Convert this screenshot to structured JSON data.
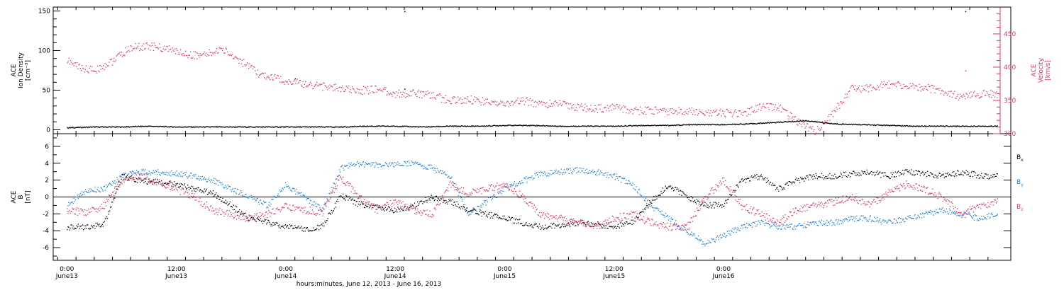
{
  "colors": {
    "black": "#000000",
    "blue": "#1a80e0",
    "pink": "#e8305a",
    "axis": "#000000"
  },
  "chart_data": [
    {
      "type": "scatter",
      "panel": "top",
      "ylabel_left": [
        "ACE",
        "Ion Density",
        "[cm⁻³]"
      ],
      "ylabel_right": [
        "ACE",
        "Velocity",
        "[km/s]"
      ],
      "ylim_left": [
        -5,
        155
      ],
      "ylim_right": [
        300,
        485
      ],
      "yticks_left": [
        "0",
        "50",
        "100",
        "150"
      ],
      "yticks_right": [
        "300",
        "350",
        "400",
        "450"
      ],
      "series": [
        {
          "axis": "left",
          "color": "black",
          "t": [
            0,
            3,
            6,
            9,
            12,
            15,
            18,
            21,
            24,
            27,
            30,
            33,
            36,
            39,
            42,
            45,
            48,
            51,
            54,
            57,
            60,
            63,
            66,
            69,
            72,
            75,
            78,
            81,
            84,
            87,
            90,
            93,
            96,
            99,
            102
          ],
          "values": [
            3,
            4,
            4,
            5,
            4,
            4,
            4,
            4,
            4,
            4,
            4,
            5,
            5,
            4,
            5,
            5,
            6,
            6,
            5,
            5,
            5,
            6,
            6,
            7,
            7,
            8,
            10,
            12,
            8,
            7,
            6,
            5,
            5,
            5,
            5
          ]
        },
        {
          "axis": "right",
          "color": "pink",
          "t": [
            0,
            1.5,
            3,
            5,
            7,
            9,
            11,
            13,
            15,
            17,
            19,
            21,
            24,
            26,
            28,
            30,
            32,
            34,
            36,
            38,
            40,
            42,
            44,
            46,
            48,
            50,
            52,
            54,
            56,
            58,
            60,
            62,
            64,
            66,
            68,
            70,
            72,
            74,
            76,
            78,
            80,
            82,
            84,
            86,
            88,
            90,
            92,
            94,
            96,
            98,
            100,
            102
          ],
          "values": [
            410,
            400,
            395,
            410,
            430,
            432,
            428,
            420,
            418,
            428,
            410,
            390,
            380,
            375,
            372,
            368,
            365,
            368,
            360,
            362,
            358,
            350,
            352,
            348,
            345,
            350,
            345,
            345,
            340,
            338,
            340,
            335,
            336,
            333,
            335,
            330,
            332,
            330,
            340,
            340,
            320,
            305,
            330,
            370,
            368,
            375,
            372,
            370,
            365,
            355,
            360,
            360
          ]
        }
      ],
      "outliers": [
        {
          "t": 37,
          "value": 150,
          "color": "black"
        },
        {
          "t": 25,
          "value": 65,
          "color": "black"
        },
        {
          "t": 37,
          "value": 52,
          "color": "black"
        },
        {
          "t": 98.5,
          "value": 150,
          "color": "black"
        },
        {
          "t": 98.5,
          "value": 75,
          "color": "pink"
        }
      ]
    },
    {
      "type": "scatter",
      "panel": "bottom",
      "ylabel_left": [
        "ACE",
        "B",
        "[nT]"
      ],
      "ylim": [
        -7.5,
        7.5
      ],
      "yticks": [
        "-6",
        "-4",
        "-2",
        "0",
        "2",
        "4",
        "6"
      ],
      "legend": [
        {
          "label": "B",
          "sub": "x",
          "color": "black"
        },
        {
          "label": "B",
          "sub": "y",
          "color": "blue"
        },
        {
          "label": "B",
          "sub": "z",
          "color": "pink"
        }
      ],
      "series": [
        {
          "color": "black",
          "t": [
            0,
            2,
            4,
            6,
            8,
            10,
            12,
            14,
            16,
            18,
            20,
            22,
            24,
            26,
            28,
            30,
            32,
            34,
            36,
            38,
            40,
            42,
            44,
            46,
            48,
            50,
            52,
            54,
            56,
            58,
            60,
            62,
            64,
            66,
            68,
            70,
            72,
            74,
            76,
            78,
            80,
            82,
            84,
            86,
            88,
            90,
            92,
            94,
            96,
            98,
            100,
            102
          ],
          "values": [
            -3.5,
            -3.5,
            -3.3,
            2.5,
            2,
            1.8,
            1.5,
            1,
            0.5,
            -1,
            -2.5,
            -3,
            -3.5,
            -3.8,
            -3.4,
            0.2,
            -0.8,
            -1.2,
            -1.5,
            -1,
            0,
            -0.5,
            -1.5,
            -2,
            -2.5,
            -3,
            -3.5,
            -3.3,
            -3,
            -3.2,
            -3.4,
            -3,
            -0.5,
            1.5,
            0,
            -1,
            -0.8,
            2,
            2.5,
            1,
            2,
            2.5,
            2.5,
            2.8,
            3,
            2.5,
            3,
            2.8,
            2.5,
            3,
            2.6,
            2.5
          ]
        },
        {
          "color": "blue",
          "t": [
            0,
            2,
            4,
            6,
            8,
            10,
            12,
            14,
            16,
            18,
            20,
            22,
            24,
            26,
            28,
            30,
            32,
            34,
            36,
            38,
            40,
            42,
            44,
            46,
            48,
            50,
            52,
            54,
            56,
            58,
            60,
            62,
            64,
            66,
            68,
            70,
            72,
            74,
            76,
            78,
            80,
            82,
            84,
            86,
            88,
            90,
            92,
            94,
            96,
            98,
            100,
            102
          ],
          "values": [
            -1,
            0.8,
            1,
            2.5,
            3,
            3,
            2.8,
            2.5,
            2,
            1,
            0,
            -1,
            1.5,
            0,
            -1.5,
            3.5,
            4,
            3.8,
            3.9,
            4,
            3.5,
            2.5,
            -2,
            -0.5,
            1,
            2,
            2.8,
            3,
            3.2,
            3,
            2.5,
            1.5,
            -1,
            -2.5,
            -4,
            -5.5,
            -4.5,
            -3.5,
            -3,
            -3.5,
            -3.5,
            -3,
            -3,
            -2.5,
            -2.5,
            -3,
            -2.5,
            -2,
            -1.5,
            -2,
            -2.5,
            -2
          ]
        },
        {
          "color": "pink",
          "t": [
            0,
            2,
            4,
            6,
            8,
            10,
            12,
            14,
            16,
            18,
            20,
            22,
            24,
            26,
            28,
            30,
            32,
            34,
            36,
            38,
            40,
            42,
            44,
            46,
            48,
            50,
            52,
            54,
            56,
            58,
            60,
            62,
            64,
            66,
            68,
            70,
            72,
            74,
            76,
            78,
            80,
            82,
            84,
            86,
            88,
            90,
            92,
            94,
            96,
            98,
            100,
            102
          ],
          "values": [
            -1.5,
            -1.8,
            -1,
            2,
            2.5,
            1.8,
            1,
            0,
            -1.5,
            -2,
            -2.5,
            -2,
            -1,
            -1.5,
            -1.8,
            2.5,
            0,
            -1.5,
            -0.5,
            -1.5,
            -2,
            1.5,
            0.5,
            1,
            1.5,
            0,
            -2,
            -2.5,
            -3,
            -3.5,
            -2.5,
            -2,
            -3,
            -3.5,
            -3.5,
            0,
            2,
            -1,
            -2,
            -3,
            -1.5,
            -1,
            -0.5,
            0,
            -1,
            0.5,
            1.5,
            1,
            0,
            -2,
            -1,
            -0.5
          ]
        }
      ]
    }
  ],
  "x_axis": {
    "t_range": [
      -1.5,
      102
    ],
    "tick_t": [
      0,
      12,
      24,
      36,
      48,
      60,
      72,
      84
    ],
    "ticks": [
      {
        "time": "0:00",
        "date": "June13"
      },
      {
        "time": "12:00",
        "date": "June13"
      },
      {
        "time": "0:00",
        "date": "June14"
      },
      {
        "time": "12:00",
        "date": "June14"
      },
      {
        "time": "0:00",
        "date": "June15"
      },
      {
        "time": "12:00",
        "date": "June15"
      },
      {
        "time": "0:00",
        "date": "June16"
      }
    ],
    "ticks_t": [
      0,
      12,
      24,
      36,
      48,
      60,
      72
    ],
    "title": "hours:minutes, June 12, 2013 - June 16, 2013"
  }
}
